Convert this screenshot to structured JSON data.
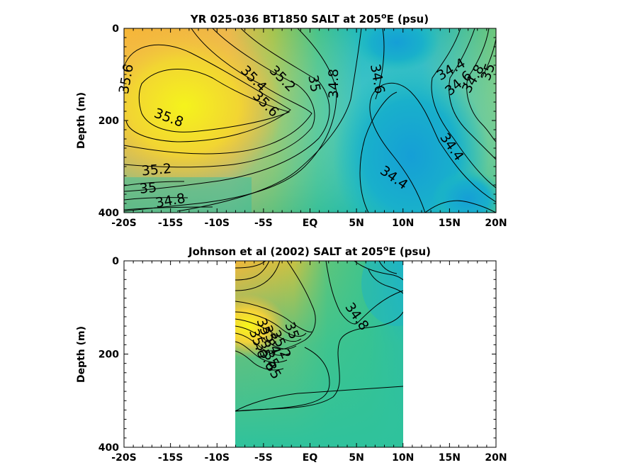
{
  "chart_data": [
    {
      "type": "heatmap",
      "title_main": "YR 025-036 BT1850 SALT at 205",
      "title_sup": "o",
      "title_tail": "E (psu)",
      "ylabel": "Depth (m)",
      "xlim": [
        -20,
        20
      ],
      "ylim": [
        400,
        0
      ],
      "x_ticks": [
        -20,
        -15,
        -10,
        -5,
        0,
        5,
        10,
        15,
        20
      ],
      "x_tick_labels": [
        "-20S",
        "-15S",
        "-10S",
        "-5S",
        "EQ",
        "5N",
        "10N",
        "15N",
        "20N"
      ],
      "y_ticks": [
        0,
        200,
        400
      ],
      "y_tick_labels": [
        "0",
        "200",
        "400"
      ],
      "data_extent": [
        -20,
        20
      ],
      "colormap": "parula",
      "color_range": [
        34.2,
        35.9
      ],
      "contour_labels": [
        {
          "text": "35.6",
          "lat": -19.7,
          "depth": 110,
          "angle": -80
        },
        {
          "text": "35.8",
          "lat": -15.2,
          "depth": 195,
          "angle": 20
        },
        {
          "text": "35.4",
          "lat": -6.1,
          "depth": 110,
          "angle": 45
        },
        {
          "text": "35.6",
          "lat": -4.8,
          "depth": 165,
          "angle": 45
        },
        {
          "text": "35.2",
          "lat": -3.0,
          "depth": 110,
          "angle": 45
        },
        {
          "text": "35",
          "lat": 0.4,
          "depth": 120,
          "angle": 80
        },
        {
          "text": "34.8",
          "lat": 2.6,
          "depth": 120,
          "angle": -90
        },
        {
          "text": "34.6",
          "lat": 7.2,
          "depth": 110,
          "angle": 80
        },
        {
          "text": "34.4",
          "lat": 15.2,
          "depth": 90,
          "angle": -30
        },
        {
          "text": "34.6",
          "lat": 16.0,
          "depth": 120,
          "angle": -40
        },
        {
          "text": "34.8",
          "lat": 17.6,
          "depth": 110,
          "angle": -60
        },
        {
          "text": "35",
          "lat": 19.2,
          "depth": 95,
          "angle": -70
        },
        {
          "text": "34.4",
          "lat": 15.2,
          "depth": 258,
          "angle": 55
        },
        {
          "text": "34.4",
          "lat": 9.0,
          "depth": 325,
          "angle": 35
        },
        {
          "text": "35.2",
          "lat": -16.5,
          "depth": 308,
          "angle": -5
        },
        {
          "text": "35",
          "lat": -17.4,
          "depth": 348,
          "angle": -5
        },
        {
          "text": "34.8",
          "lat": -15.0,
          "depth": 375,
          "angle": -10
        }
      ]
    },
    {
      "type": "heatmap",
      "title_main": "Johnson et al (2002) SALT at 205",
      "title_sup": "o",
      "title_tail": "E (psu)",
      "ylabel": "Depth (m)",
      "xlim": [
        -20,
        20
      ],
      "ylim": [
        400,
        0
      ],
      "x_ticks": [
        -20,
        -15,
        -10,
        -5,
        0,
        5,
        10,
        15,
        20
      ],
      "x_tick_labels": [
        "-20S",
        "-15S",
        "-10S",
        "-5S",
        "EQ",
        "5N",
        "10N",
        "15N",
        "20N"
      ],
      "y_ticks": [
        0,
        200,
        400
      ],
      "y_tick_labels": [
        "0",
        "200",
        "400"
      ],
      "data_extent": [
        -8,
        10
      ],
      "colormap": "parula",
      "color_range": [
        34.2,
        35.9
      ],
      "contour_labels": [
        {
          "text": "34.8",
          "lat": 5.0,
          "depth": 120,
          "angle": 55
        },
        {
          "text": "35",
          "lat": -2.0,
          "depth": 150,
          "angle": 70
        },
        {
          "text": "35.2",
          "lat": -3.2,
          "depth": 180,
          "angle": 65
        },
        {
          "text": "35.4",
          "lat": -4.2,
          "depth": 170,
          "angle": 70
        },
        {
          "text": "35.8",
          "lat": -4.8,
          "depth": 155,
          "angle": 70
        },
        {
          "text": "35.6",
          "lat": -5.6,
          "depth": 178,
          "angle": 70
        },
        {
          "text": "35.6",
          "lat": -4.8,
          "depth": 205,
          "angle": 65
        },
        {
          "text": "35",
          "lat": -4.2,
          "depth": 212,
          "angle": 60
        },
        {
          "text": "35",
          "lat": -4.0,
          "depth": 236,
          "angle": 60
        }
      ]
    }
  ]
}
